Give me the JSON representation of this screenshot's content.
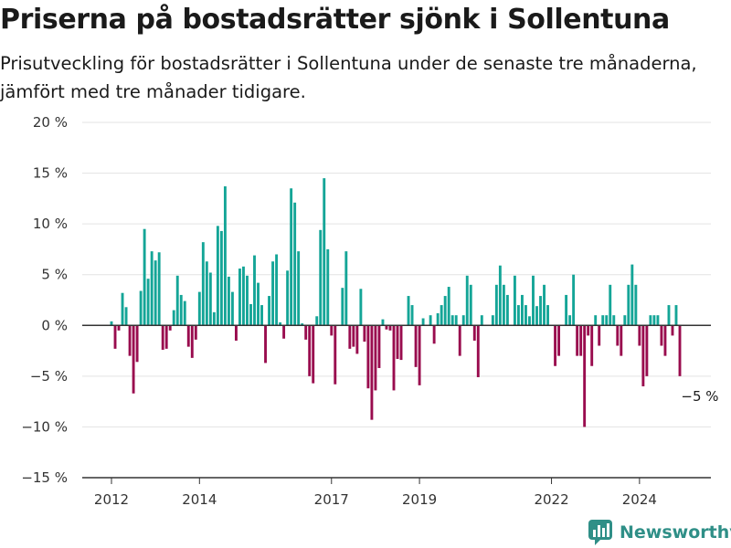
{
  "title": "Priserna på bostadsrätter sjönk i Sollentuna",
  "subtitle": "Prisutveckling för bostadsrätter i Sollentuna under de senaste tre månaderna, jämfört med tre månader tidigare.",
  "brand": {
    "name": "Newsworthy",
    "icon": "newsworthy-logo-icon"
  },
  "colors": {
    "positive": "#14a597",
    "negative": "#990c4e",
    "zero_line": "#333333",
    "grid": "#e3e3e3"
  },
  "chart_data": {
    "type": "bar",
    "unit": "%",
    "ylim": [
      -15,
      20
    ],
    "yticks": [
      -15,
      -10,
      -5,
      0,
      5,
      10,
      15,
      20
    ],
    "ytick_labels": [
      "−15 %",
      "−10 %",
      "−5 %",
      "0 %",
      "5 %",
      "10 %",
      "15 %",
      "20 %"
    ],
    "xlim": [
      "2011-07",
      "2025-06"
    ],
    "xticks": [
      "2012-01",
      "2014-01",
      "2017-01",
      "2019-01",
      "2022-01",
      "2024-01"
    ],
    "xtick_labels": [
      "2012",
      "2014",
      "2017",
      "2019",
      "2022",
      "2024"
    ],
    "grid": true,
    "annotation": {
      "text": "−5 %",
      "month": "2024-12",
      "value": -5
    },
    "months": [
      "2012-01",
      "2012-02",
      "2012-03",
      "2012-04",
      "2012-05",
      "2012-06",
      "2012-07",
      "2012-08",
      "2012-09",
      "2012-10",
      "2012-11",
      "2012-12",
      "2013-01",
      "2013-02",
      "2013-03",
      "2013-04",
      "2013-05",
      "2013-06",
      "2013-07",
      "2013-08",
      "2013-09",
      "2013-10",
      "2013-11",
      "2013-12",
      "2014-01",
      "2014-02",
      "2014-03",
      "2014-04",
      "2014-05",
      "2014-06",
      "2014-07",
      "2014-08",
      "2014-09",
      "2014-10",
      "2014-11",
      "2014-12",
      "2015-01",
      "2015-02",
      "2015-03",
      "2015-04",
      "2015-05",
      "2015-06",
      "2015-07",
      "2015-08",
      "2015-09",
      "2015-10",
      "2015-11",
      "2015-12",
      "2016-01",
      "2016-02",
      "2016-03",
      "2016-04",
      "2016-05",
      "2016-06",
      "2016-07",
      "2016-08",
      "2016-09",
      "2016-10",
      "2016-11",
      "2016-12",
      "2017-01",
      "2017-02",
      "2017-03",
      "2017-04",
      "2017-05",
      "2017-06",
      "2017-07",
      "2017-08",
      "2017-09",
      "2017-10",
      "2017-11",
      "2017-12",
      "2018-01",
      "2018-02",
      "2018-03",
      "2018-04",
      "2018-05",
      "2018-06",
      "2018-07",
      "2018-08",
      "2018-09",
      "2018-10",
      "2018-11",
      "2018-12",
      "2019-01",
      "2019-02",
      "2019-03",
      "2019-04",
      "2019-05",
      "2019-06",
      "2019-07",
      "2019-08",
      "2019-09",
      "2019-10",
      "2019-11",
      "2019-12",
      "2020-01",
      "2020-02",
      "2020-03",
      "2020-04",
      "2020-05",
      "2020-06",
      "2020-07",
      "2020-08",
      "2020-09",
      "2020-10",
      "2020-11",
      "2020-12",
      "2021-01",
      "2021-02",
      "2021-03",
      "2021-04",
      "2021-05",
      "2021-06",
      "2021-07",
      "2021-08",
      "2021-09",
      "2021-10",
      "2021-11",
      "2021-12",
      "2022-01",
      "2022-02",
      "2022-03",
      "2022-04",
      "2022-05",
      "2022-06",
      "2022-07",
      "2022-08",
      "2022-09",
      "2022-10",
      "2022-11",
      "2022-12",
      "2023-01",
      "2023-02",
      "2023-03",
      "2023-04",
      "2023-05",
      "2023-06",
      "2023-07",
      "2023-08",
      "2023-09",
      "2023-10",
      "2023-11",
      "2023-12",
      "2024-01",
      "2024-02",
      "2024-03",
      "2024-04",
      "2024-05",
      "2024-06",
      "2024-07",
      "2024-08",
      "2024-09",
      "2024-10",
      "2024-11",
      "2024-12"
    ],
    "values": [
      0.4,
      -2.3,
      -0.5,
      3.2,
      1.8,
      -3.0,
      -6.7,
      -3.6,
      3.4,
      9.5,
      4.6,
      7.3,
      6.4,
      7.2,
      -2.4,
      -2.3,
      -0.5,
      1.5,
      4.9,
      3.0,
      2.4,
      -2.1,
      -3.2,
      -1.4,
      3.3,
      8.2,
      6.3,
      5.2,
      1.3,
      9.8,
      9.3,
      13.7,
      4.8,
      3.3,
      -1.5,
      5.6,
      5.8,
      4.9,
      2.1,
      6.9,
      4.2,
      2.0,
      -3.7,
      2.9,
      6.3,
      7.0,
      0.3,
      -1.3,
      5.4,
      13.5,
      12.1,
      7.3,
      0.2,
      -1.4,
      -5.0,
      -5.7,
      0.9,
      9.4,
      14.5,
      7.5,
      -1.0,
      -5.8,
      0.0,
      3.7,
      7.3,
      -2.3,
      -2.1,
      -2.8,
      3.6,
      -1.6,
      -6.2,
      -9.3,
      -6.4,
      -4.2,
      0.6,
      -0.4,
      -0.5,
      -6.4,
      -3.3,
      -3.4,
      0.0,
      2.9,
      2.0,
      -4.1,
      -5.9,
      0.7,
      0.0,
      1.0,
      -1.8,
      1.2,
      2.0,
      2.9,
      3.8,
      1.0,
      1.0,
      -3.0,
      1.0,
      4.9,
      4.0,
      -1.5,
      -5.1,
      1.0,
      0.0,
      0.0,
      1.0,
      4.0,
      5.9,
      4.0,
      3.0,
      0.0,
      4.9,
      2.0,
      3.0,
      2.0,
      0.9,
      4.9,
      1.9,
      2.9,
      4.0,
      2.0,
      0.0,
      -4.0,
      -3.0,
      0.0,
      3.0,
      1.0,
      5.0,
      -3.0,
      -3.0,
      -10.0,
      -1.0,
      -4.0,
      1.0,
      -2.0,
      1.0,
      1.0,
      4.0,
      1.0,
      -2.0,
      -3.0,
      1.0,
      4.0,
      6.0,
      4.0,
      -2.0,
      -6.0,
      -5.0,
      1.0,
      1.0,
      1.0,
      -2.0,
      -3.0,
      2.0,
      -1.0,
      2.0,
      -5.0
    ]
  }
}
